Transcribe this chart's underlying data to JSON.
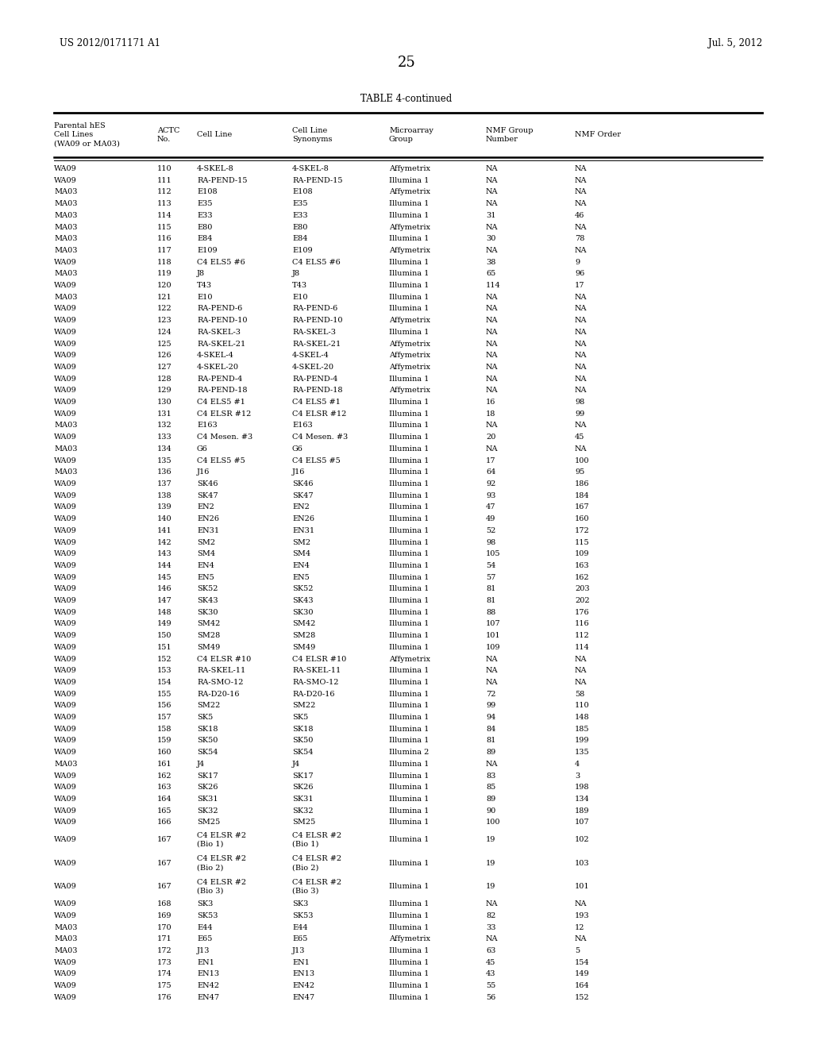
{
  "header_line1": "US 2012/0171171 A1",
  "header_line2": "Jul. 5, 2012",
  "page_number": "25",
  "table_title": "TABLE 4-continued",
  "col_headers_flat": [
    "Parental hES\nCell Lines\n(WA09 or MA03)",
    "ACTC\nNo.",
    "Cell Line",
    "Cell Line\nSynonyms",
    "Microarray\nGroup",
    "NMF Group\nNumber",
    "NMF Order"
  ],
  "rows": [
    [
      "WA09",
      "110",
      "4-SKEL-8",
      "4-SKEL-8",
      "Affymetrix",
      "NA",
      "NA"
    ],
    [
      "WA09",
      "111",
      "RA-PEND-15",
      "RA-PEND-15",
      "Illumina 1",
      "NA",
      "NA"
    ],
    [
      "MA03",
      "112",
      "E108",
      "E108",
      "Affymetrix",
      "NA",
      "NA"
    ],
    [
      "MA03",
      "113",
      "E35",
      "E35",
      "Illumina 1",
      "NA",
      "NA"
    ],
    [
      "MA03",
      "114",
      "E33",
      "E33",
      "Illumina 1",
      "31",
      "46"
    ],
    [
      "MA03",
      "115",
      "E80",
      "E80",
      "Affymetrix",
      "NA",
      "NA"
    ],
    [
      "MA03",
      "116",
      "E84",
      "E84",
      "Illumina 1",
      "30",
      "78"
    ],
    [
      "MA03",
      "117",
      "E109",
      "E109",
      "Affymetrix",
      "NA",
      "NA"
    ],
    [
      "WA09",
      "118",
      "C4 ELS5 #6",
      "C4 ELS5 #6",
      "Illumina 1",
      "38",
      "9"
    ],
    [
      "MA03",
      "119",
      "J8",
      "J8",
      "Illumina 1",
      "65",
      "96"
    ],
    [
      "WA09",
      "120",
      "T43",
      "T43",
      "Illumina 1",
      "114",
      "17"
    ],
    [
      "MA03",
      "121",
      "E10",
      "E10",
      "Illumina 1",
      "NA",
      "NA"
    ],
    [
      "WA09",
      "122",
      "RA-PEND-6",
      "RA-PEND-6",
      "Illumina 1",
      "NA",
      "NA"
    ],
    [
      "WA09",
      "123",
      "RA-PEND-10",
      "RA-PEND-10",
      "Affymetrix",
      "NA",
      "NA"
    ],
    [
      "WA09",
      "124",
      "RA-SKEL-3",
      "RA-SKEL-3",
      "Illumina 1",
      "NA",
      "NA"
    ],
    [
      "WA09",
      "125",
      "RA-SKEL-21",
      "RA-SKEL-21",
      "Affymetrix",
      "NA",
      "NA"
    ],
    [
      "WA09",
      "126",
      "4-SKEL-4",
      "4-SKEL-4",
      "Affymetrix",
      "NA",
      "NA"
    ],
    [
      "WA09",
      "127",
      "4-SKEL-20",
      "4-SKEL-20",
      "Affymetrix",
      "NA",
      "NA"
    ],
    [
      "WA09",
      "128",
      "RA-PEND-4",
      "RA-PEND-4",
      "Illumina 1",
      "NA",
      "NA"
    ],
    [
      "WA09",
      "129",
      "RA-PEND-18",
      "RA-PEND-18",
      "Affymetrix",
      "NA",
      "NA"
    ],
    [
      "WA09",
      "130",
      "C4 ELS5 #1",
      "C4 ELS5 #1",
      "Illumina 1",
      "16",
      "98"
    ],
    [
      "WA09",
      "131",
      "C4 ELSR #12",
      "C4 ELSR #12",
      "Illumina 1",
      "18",
      "99"
    ],
    [
      "MA03",
      "132",
      "E163",
      "E163",
      "Illumina 1",
      "NA",
      "NA"
    ],
    [
      "WA09",
      "133",
      "C4 Mesen. #3",
      "C4 Mesen. #3",
      "Illumina 1",
      "20",
      "45"
    ],
    [
      "MA03",
      "134",
      "G6",
      "G6",
      "Illumina 1",
      "NA",
      "NA"
    ],
    [
      "WA09",
      "135",
      "C4 ELS5 #5",
      "C4 ELS5 #5",
      "Illumina 1",
      "17",
      "100"
    ],
    [
      "MA03",
      "136",
      "J16",
      "J16",
      "Illumina 1",
      "64",
      "95"
    ],
    [
      "WA09",
      "137",
      "SK46",
      "SK46",
      "Illumina 1",
      "92",
      "186"
    ],
    [
      "WA09",
      "138",
      "SK47",
      "SK47",
      "Illumina 1",
      "93",
      "184"
    ],
    [
      "WA09",
      "139",
      "EN2",
      "EN2",
      "Illumina 1",
      "47",
      "167"
    ],
    [
      "WA09",
      "140",
      "EN26",
      "EN26",
      "Illumina 1",
      "49",
      "160"
    ],
    [
      "WA09",
      "141",
      "EN31",
      "EN31",
      "Illumina 1",
      "52",
      "172"
    ],
    [
      "WA09",
      "142",
      "SM2",
      "SM2",
      "Illumina 1",
      "98",
      "115"
    ],
    [
      "WA09",
      "143",
      "SM4",
      "SM4",
      "Illumina 1",
      "105",
      "109"
    ],
    [
      "WA09",
      "144",
      "EN4",
      "EN4",
      "Illumina 1",
      "54",
      "163"
    ],
    [
      "WA09",
      "145",
      "EN5",
      "EN5",
      "Illumina 1",
      "57",
      "162"
    ],
    [
      "WA09",
      "146",
      "SK52",
      "SK52",
      "Illumina 1",
      "81",
      "203"
    ],
    [
      "WA09",
      "147",
      "SK43",
      "SK43",
      "Illumina 1",
      "81",
      "202"
    ],
    [
      "WA09",
      "148",
      "SK30",
      "SK30",
      "Illumina 1",
      "88",
      "176"
    ],
    [
      "WA09",
      "149",
      "SM42",
      "SM42",
      "Illumina 1",
      "107",
      "116"
    ],
    [
      "WA09",
      "150",
      "SM28",
      "SM28",
      "Illumina 1",
      "101",
      "112"
    ],
    [
      "WA09",
      "151",
      "SM49",
      "SM49",
      "Illumina 1",
      "109",
      "114"
    ],
    [
      "WA09",
      "152",
      "C4 ELSR #10",
      "C4 ELSR #10",
      "Affymetrix",
      "NA",
      "NA"
    ],
    [
      "WA09",
      "153",
      "RA-SKEL-11",
      "RA-SKEL-11",
      "Illumina 1",
      "NA",
      "NA"
    ],
    [
      "WA09",
      "154",
      "RA-SMO-12",
      "RA-SMO-12",
      "Illumina 1",
      "NA",
      "NA"
    ],
    [
      "WA09",
      "155",
      "RA-D20-16",
      "RA-D20-16",
      "Illumina 1",
      "72",
      "58"
    ],
    [
      "WA09",
      "156",
      "SM22",
      "SM22",
      "Illumina 1",
      "99",
      "110"
    ],
    [
      "WA09",
      "157",
      "SK5",
      "SK5",
      "Illumina 1",
      "94",
      "148"
    ],
    [
      "WA09",
      "158",
      "SK18",
      "SK18",
      "Illumina 1",
      "84",
      "185"
    ],
    [
      "WA09",
      "159",
      "SK50",
      "SK50",
      "Illumina 1",
      "81",
      "199"
    ],
    [
      "WA09",
      "160",
      "SK54",
      "SK54",
      "Illumina 2",
      "89",
      "135"
    ],
    [
      "MA03",
      "161",
      "J4",
      "J4",
      "Illumina 1",
      "NA",
      "4"
    ],
    [
      "WA09",
      "162",
      "SK17",
      "SK17",
      "Illumina 1",
      "83",
      "3"
    ],
    [
      "WA09",
      "163",
      "SK26",
      "SK26",
      "Illumina 1",
      "85",
      "198"
    ],
    [
      "WA09",
      "164",
      "SK31",
      "SK31",
      "Illumina 1",
      "89",
      "134"
    ],
    [
      "WA09",
      "165",
      "SK32",
      "SK32",
      "Illumina 1",
      "90",
      "189"
    ],
    [
      "WA09",
      "166",
      "SM25",
      "SM25",
      "Illumina 1",
      "100",
      "107"
    ],
    [
      "WA09",
      "167",
      "C4 ELSR #2\n(Bio 1)",
      "C4 ELSR #2\n(Bio 1)",
      "Illumina 1",
      "19",
      "102"
    ],
    [
      "WA09",
      "167",
      "C4 ELSR #2\n(Bio 2)",
      "C4 ELSR #2\n(Bio 2)",
      "Illumina 1",
      "19",
      "103"
    ],
    [
      "WA09",
      "167",
      "C4 ELSR #2\n(Bio 3)",
      "C4 ELSR #2\n(Bio 3)",
      "Illumina 1",
      "19",
      "101"
    ],
    [
      "WA09",
      "168",
      "SK3",
      "SK3",
      "Illumina 1",
      "NA",
      "NA"
    ],
    [
      "WA09",
      "169",
      "SK53",
      "SK53",
      "Illumina 1",
      "82",
      "193"
    ],
    [
      "MA03",
      "170",
      "E44",
      "E44",
      "Illumina 1",
      "33",
      "12"
    ],
    [
      "MA03",
      "171",
      "E65",
      "E65",
      "Affymetrix",
      "NA",
      "NA"
    ],
    [
      "MA03",
      "172",
      "J13",
      "J13",
      "Illumina 1",
      "63",
      "5"
    ],
    [
      "WA09",
      "173",
      "EN1",
      "EN1",
      "Illumina 1",
      "45",
      "154"
    ],
    [
      "WA09",
      "174",
      "EN13",
      "EN13",
      "Illumina 1",
      "43",
      "149"
    ],
    [
      "WA09",
      "175",
      "EN42",
      "EN42",
      "Illumina 1",
      "55",
      "164"
    ],
    [
      "WA09",
      "176",
      "EN47",
      "EN47",
      "Illumina 1",
      "56",
      "152"
    ]
  ],
  "bg_color": "#ffffff",
  "text_color": "#000000",
  "font_size": 7.0,
  "title_font_size": 8.5,
  "header_font_size": 7.0
}
